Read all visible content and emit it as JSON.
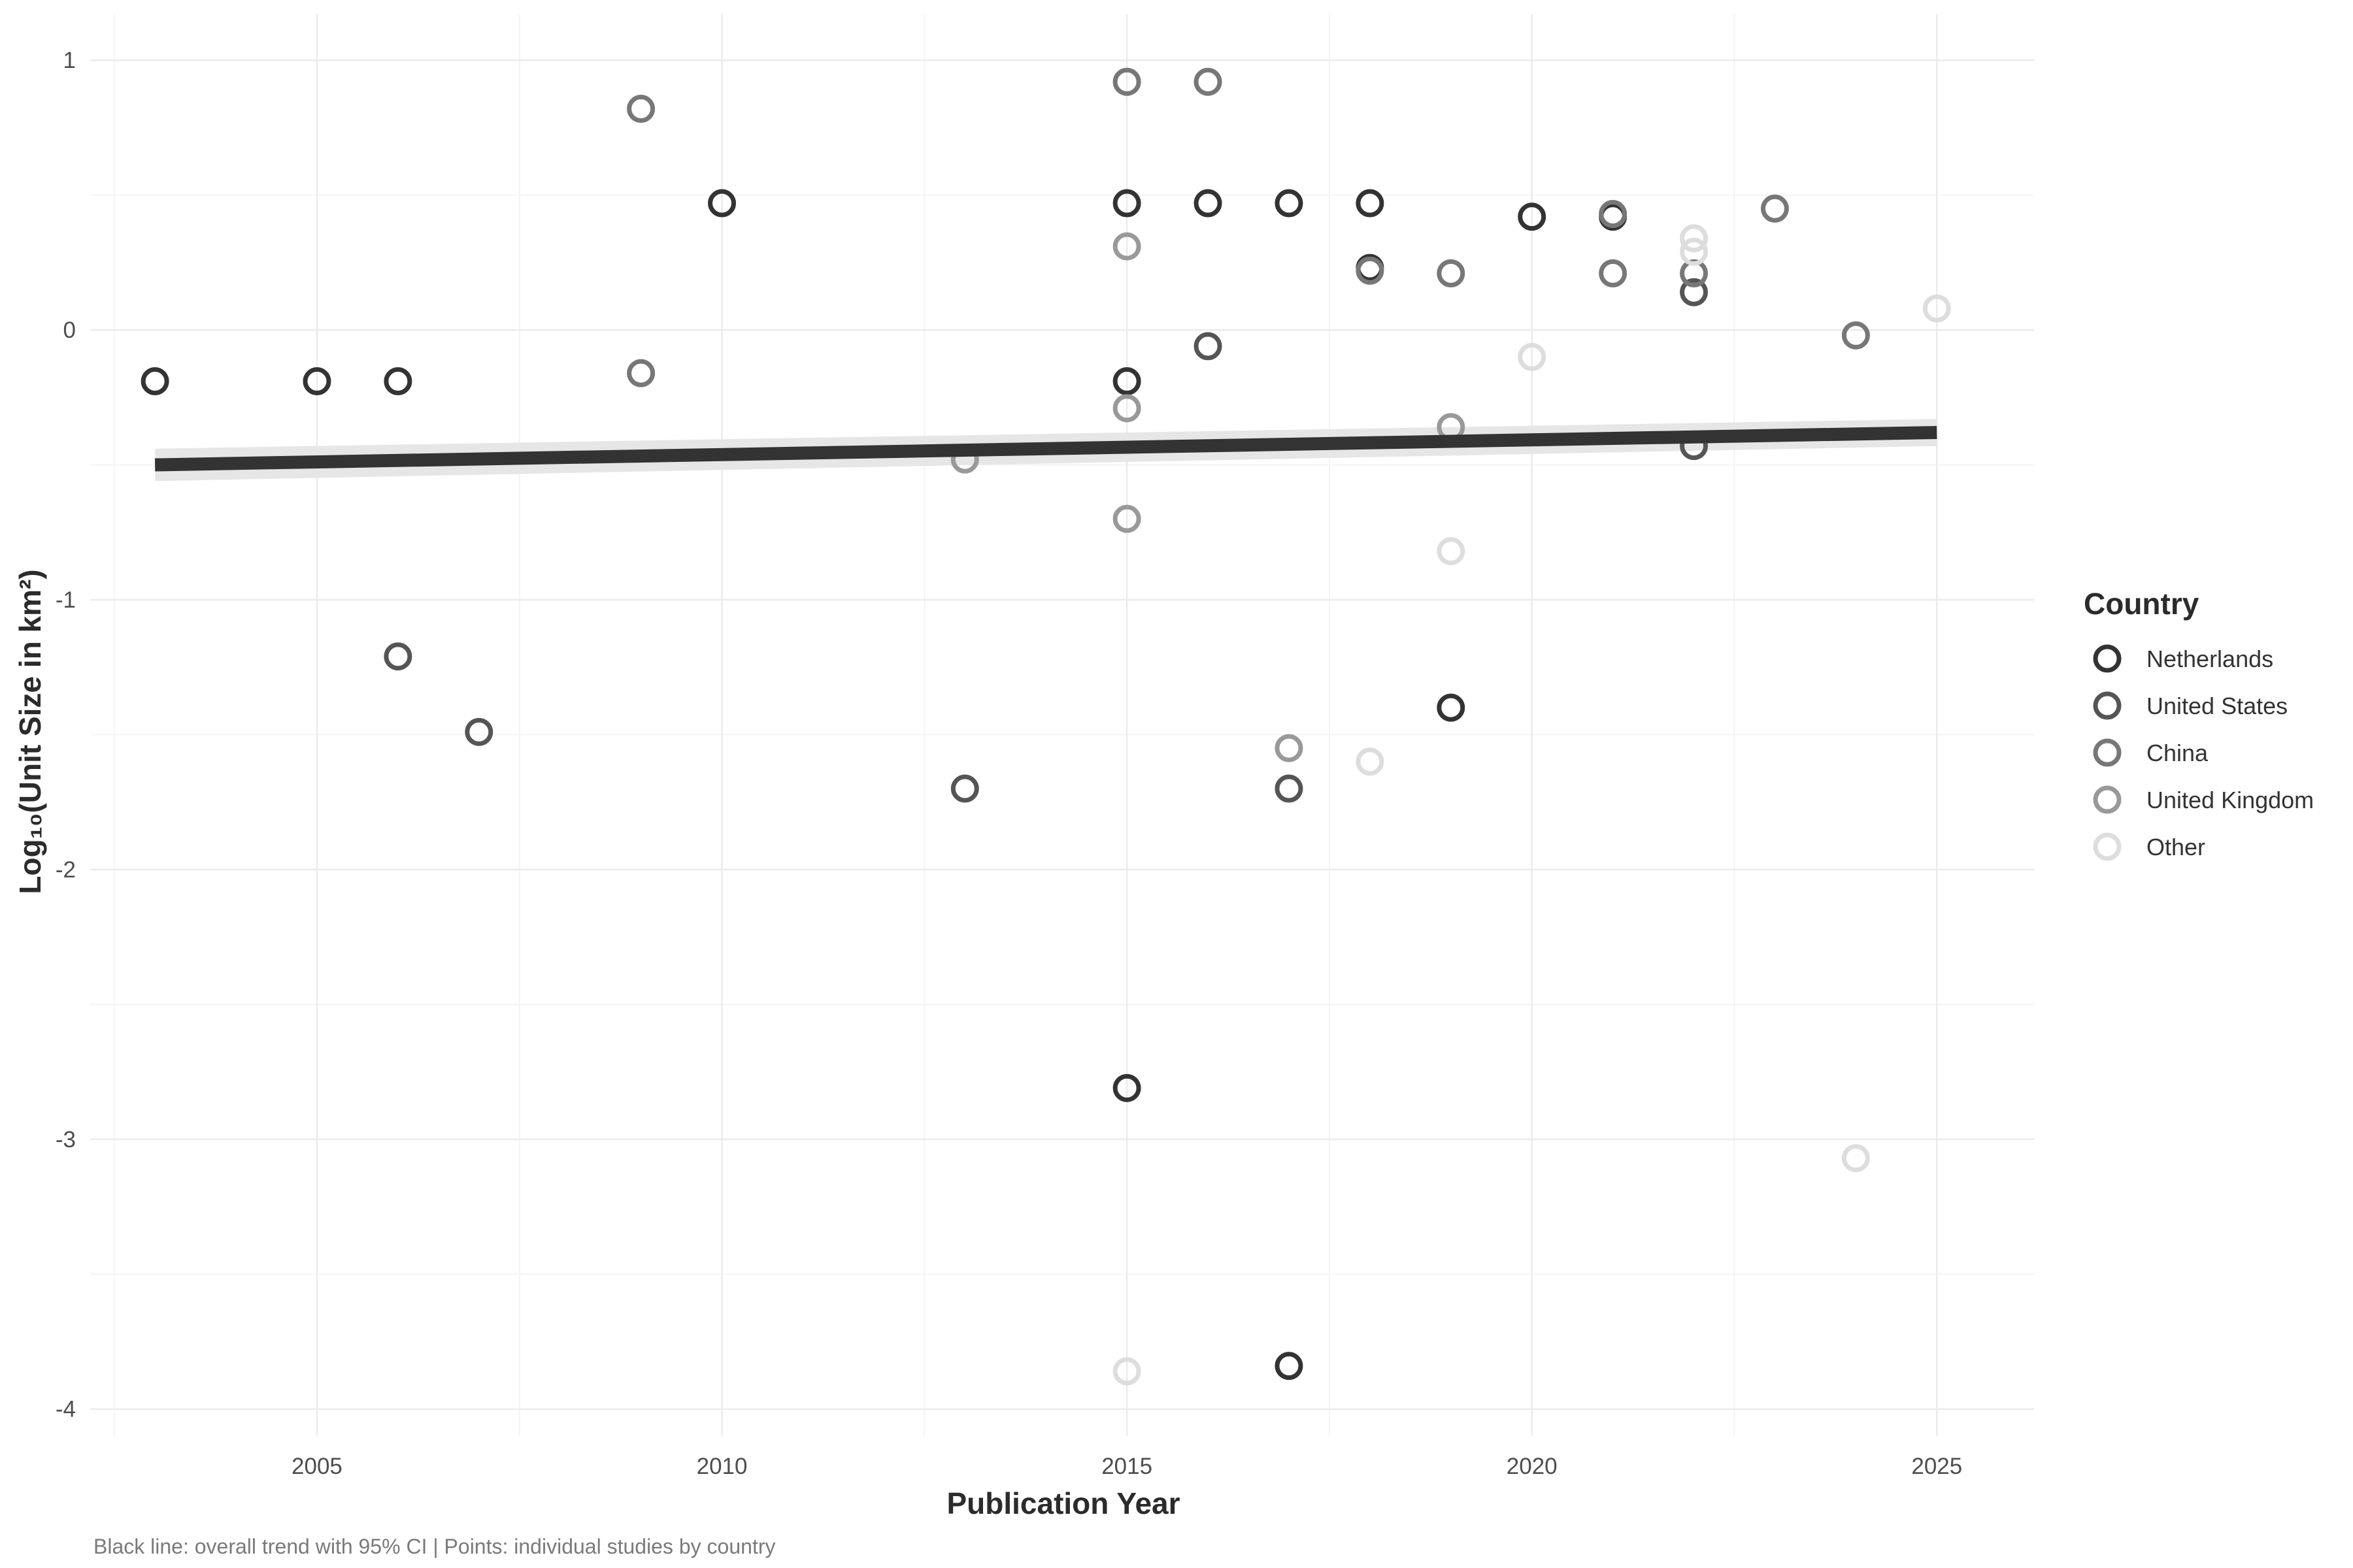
{
  "chart_data": {
    "type": "scatter",
    "title": "",
    "xlabel": "Publication Year",
    "ylabel": "Log₁₀(Unit Size in km²)",
    "caption": "Black line: overall trend with 95% CI | Points: individual studies by country",
    "xlim": [
      2002.2,
      2026.2
    ],
    "ylim": [
      -4.1,
      1.17
    ],
    "x_ticks": [
      2005,
      2010,
      2015,
      2020,
      2025
    ],
    "y_ticks": [
      -4,
      -3,
      -2,
      -1,
      0,
      1
    ],
    "grid": true,
    "legend": {
      "title": "Country",
      "position": "right"
    },
    "series": [
      {
        "name": "Netherlands",
        "color": "#333333",
        "x": [
          2003,
          2005,
          2006,
          2010,
          2015,
          2015,
          2015,
          2016,
          2017,
          2018,
          2018,
          2019,
          2020,
          2021,
          2017
        ],
        "y": [
          -0.19,
          -0.19,
          -0.19,
          0.47,
          0.47,
          -0.19,
          -2.81,
          0.47,
          0.47,
          0.47,
          0.23,
          -1.4,
          0.42,
          0.42,
          -3.84
        ]
      },
      {
        "name": "United States",
        "color": "#555555",
        "x": [
          2006,
          2007,
          2013,
          2016,
          2017,
          2022,
          2022
        ],
        "y": [
          -1.21,
          -1.49,
          -1.7,
          -0.06,
          -1.7,
          0.14,
          -0.43
        ]
      },
      {
        "name": "China",
        "color": "#777777",
        "x": [
          2009,
          2009,
          2016,
          2015,
          2018,
          2019,
          2021,
          2021,
          2022,
          2023,
          2024
        ],
        "y": [
          0.82,
          -0.16,
          0.92,
          0.92,
          0.22,
          0.21,
          0.43,
          0.21,
          0.21,
          0.45,
          -0.02
        ]
      },
      {
        "name": "United Kingdom",
        "color": "#999999",
        "x": [
          2013,
          2015,
          2015,
          2015,
          2017,
          2019
        ],
        "y": [
          -0.48,
          0.31,
          -0.29,
          -0.7,
          -1.55,
          -0.36
        ]
      },
      {
        "name": "Other",
        "color": "#dddddd",
        "x": [
          2015,
          2018,
          2019,
          2020,
          2022,
          2022,
          2024,
          2025
        ],
        "y": [
          -3.86,
          -1.6,
          -0.82,
          -0.1,
          0.34,
          0.29,
          -3.07,
          0.08
        ]
      }
    ],
    "trend": {
      "x": [
        2003,
        2025
      ],
      "y": [
        -0.5,
        -0.38
      ],
      "ci_lower": [
        -0.56,
        -0.43
      ],
      "ci_upper": [
        -0.44,
        -0.33
      ],
      "color": "#333333",
      "ci_color": "#e6e6e6"
    }
  }
}
